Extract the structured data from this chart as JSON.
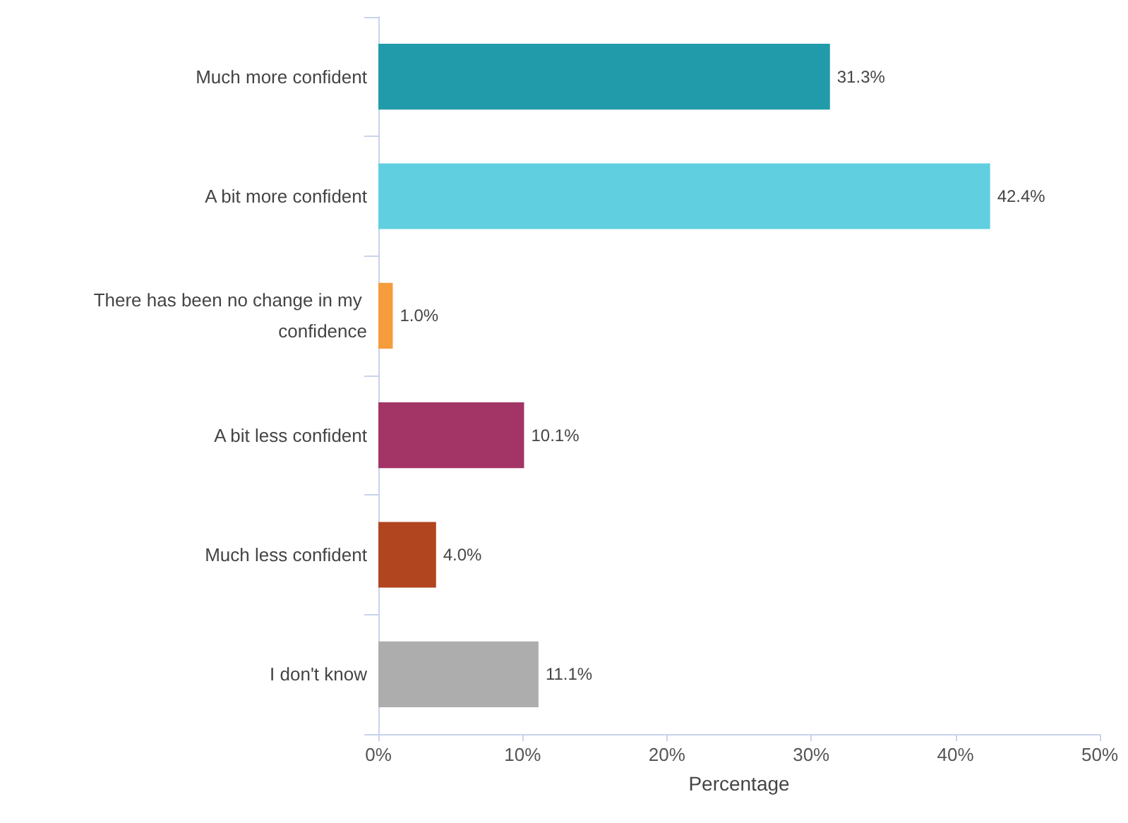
{
  "chart_data": {
    "type": "bar",
    "orientation": "horizontal",
    "xlabel": "Percentage",
    "categories": [
      "Much more confident",
      "A bit more confident",
      "There has been no change in my confidence",
      "A bit less confident",
      "Much less confident",
      "I don't know"
    ],
    "values": [
      31.3,
      42.4,
      1.0,
      10.1,
      4.0,
      11.1
    ],
    "colors": [
      "#219aaa",
      "#60cfe0",
      "#f59c3c",
      "#a23566",
      "#b0451f",
      "#adadad"
    ],
    "value_labels": [
      "31.3%",
      "42.4%",
      "1.0%",
      "10.1%",
      "4.0%",
      "11.1%"
    ],
    "xlim": [
      0,
      50
    ],
    "xticks": [
      {
        "value": 0,
        "label": "0%"
      },
      {
        "value": 10,
        "label": "10%"
      },
      {
        "value": 20,
        "label": "20%"
      },
      {
        "value": 30,
        "label": "30%"
      },
      {
        "value": 40,
        "label": "40%"
      },
      {
        "value": 50,
        "label": "50%"
      }
    ],
    "grid": false
  }
}
